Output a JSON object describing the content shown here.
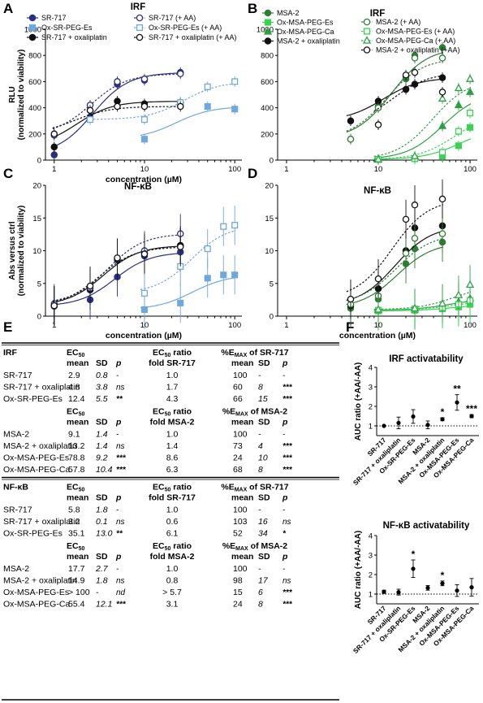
{
  "panel_letters": [
    "A",
    "B",
    "C",
    "D",
    "E",
    "F"
  ],
  "chart_data": [
    {
      "id": "A",
      "type": "scatter",
      "title": "IRF",
      "xlabel": "concentration (µM)",
      "ylabel": "RLU (normalized to viability)",
      "xscale": "log",
      "xlim": [
        0.8,
        120
      ],
      "ylim": [
        0,
        1000
      ],
      "xticks": [
        1,
        10,
        100
      ],
      "yticks": [
        0,
        200,
        400,
        600,
        800,
        1000
      ],
      "legend": [
        "SR-717",
        "Ox-SR-PEG-Es",
        "SR-717 + oxaliplatin",
        "SR-717 (+ AA)",
        "Ox-SR-PEG-Es (+ AA)",
        "SR-717 + oxaliplatin (+ AA)"
      ],
      "series": [
        {
          "name": "SR-717",
          "color": "#2b2f84",
          "marker": "circle",
          "filled": true,
          "dash": false,
          "x": [
            1,
            2.5,
            5,
            10,
            25
          ],
          "y": [
            40,
            330,
            580,
            610,
            670
          ]
        },
        {
          "name": "Ox-SR-PEG-Es",
          "color": "#6fa8dc",
          "marker": "square",
          "filled": true,
          "dash": false,
          "x": [
            10,
            50,
            100
          ],
          "y": [
            160,
            410,
            390
          ]
        },
        {
          "name": "SR-717 + oxaliplatin",
          "color": "#111111",
          "marker": "circle",
          "filled": true,
          "dash": false,
          "x": [
            1,
            2.5,
            5,
            10,
            25
          ],
          "y": [
            100,
            380,
            450,
            430,
            440
          ]
        },
        {
          "name": "SR-717 (+ AA)",
          "color": "#2b2f84",
          "marker": "circle",
          "filled": false,
          "dash": true,
          "x": [
            1,
            2.5,
            5,
            10,
            25
          ],
          "y": [
            190,
            420,
            600,
            620,
            660
          ]
        },
        {
          "name": "Ox-SR-PEG-Es (+ AA)",
          "color": "#6fa8dc",
          "marker": "square",
          "filled": false,
          "dash": true,
          "x": [
            2.5,
            10,
            25,
            50,
            100
          ],
          "y": [
            310,
            310,
            440,
            560,
            600
          ]
        },
        {
          "name": "SR-717 + oxaliplatin (+ AA)",
          "color": "#111111",
          "marker": "circle",
          "filled": false,
          "dash": true,
          "x": [
            1,
            2.5,
            5,
            10,
            25
          ],
          "y": [
            200,
            380,
            410,
            410,
            410
          ]
        }
      ]
    },
    {
      "id": "B",
      "type": "scatter",
      "title": "IRF",
      "xlabel": "",
      "ylabel": "",
      "xscale": "log",
      "xlim": [
        0.8,
        120
      ],
      "ylim": [
        0,
        1000
      ],
      "xticks": [
        1,
        10,
        100
      ],
      "yticks": [
        0,
        200,
        400,
        600,
        800,
        1000
      ],
      "legend": [
        "MSA-2",
        "Ox-MSA-PEG-Es",
        "Ox-MSA-PEG-Ca",
        "MSA-2 + oxaliplatin",
        "MSA-2 (+ AA)",
        "Ox-MSA-PEG-Es (+ AA)",
        "Ox-MSA-PEG-Ca (+ AA)",
        "MSA-2 + oxaliplatin (+AA)"
      ],
      "series": [
        {
          "name": "MSA-2",
          "color": "#2e7d32",
          "marker": "circle",
          "filled": true,
          "dash": false,
          "x": [
            5,
            10,
            20,
            25,
            50
          ],
          "y": [
            160,
            410,
            620,
            800,
            860
          ]
        },
        {
          "name": "Ox-MSA-PEG-Es",
          "color": "#39d353",
          "marker": "square",
          "filled": true,
          "dash": false,
          "x": [
            10,
            25,
            50,
            75,
            100
          ],
          "y": [
            5,
            10,
            30,
            110,
            250
          ]
        },
        {
          "name": "Ox-MSA-PEG-Ca",
          "color": "#2ea043",
          "marker": "triangle",
          "filled": true,
          "dash": false,
          "x": [
            10,
            25,
            50,
            75,
            100
          ],
          "y": [
            5,
            20,
            260,
            420,
            520
          ]
        },
        {
          "name": "MSA-2 + oxaliplatin",
          "color": "#111111",
          "marker": "circle",
          "filled": true,
          "dash": false,
          "x": [
            5,
            10,
            20,
            25,
            50
          ],
          "y": [
            300,
            450,
            540,
            580,
            630
          ]
        },
        {
          "name": "MSA-2 (+ AA)",
          "color": "#2e7d32",
          "marker": "circle",
          "filled": false,
          "dash": true,
          "x": [
            5,
            10,
            20,
            25,
            50
          ],
          "y": [
            160,
            400,
            640,
            780,
            780
          ]
        },
        {
          "name": "Ox-MSA-PEG-Es (+ AA)",
          "color": "#39d353",
          "marker": "square",
          "filled": false,
          "dash": true,
          "x": [
            10,
            25,
            50,
            75,
            100
          ],
          "y": [
            5,
            10,
            60,
            220,
            360
          ]
        },
        {
          "name": "Ox-MSA-PEG-Ca (+ AA)",
          "color": "#2ea043",
          "marker": "triangle",
          "filled": false,
          "dash": true,
          "x": [
            10,
            25,
            50,
            75,
            100
          ],
          "y": [
            5,
            30,
            470,
            550,
            620
          ]
        },
        {
          "name": "MSA-2 + oxaliplatin (+AA)",
          "color": "#111111",
          "marker": "circle",
          "filled": false,
          "dash": true,
          "x": [
            10,
            20,
            25,
            50
          ],
          "y": [
            270,
            650,
            670,
            520
          ]
        }
      ]
    },
    {
      "id": "C",
      "type": "scatter",
      "title": "NF-κB",
      "xlabel": "concentration (µM)",
      "ylabel": "Abs versus ctrl (normalized to viability)",
      "xscale": "log",
      "xlim": [
        0.8,
        120
      ],
      "ylim": [
        0,
        20
      ],
      "xticks": [
        1,
        10,
        100
      ],
      "yticks": [
        0,
        5,
        10,
        15,
        20
      ],
      "series": [
        {
          "name": "SR-717",
          "color": "#2b2f84",
          "marker": "circle",
          "filled": true,
          "dash": false,
          "x": [
            1,
            2.5,
            5,
            10,
            25
          ],
          "y": [
            1.5,
            2.5,
            6.0,
            9.2,
            9.8
          ]
        },
        {
          "name": "Ox-SR-PEG-Es",
          "color": "#6fa8dc",
          "marker": "square",
          "filled": true,
          "dash": false,
          "x": [
            10,
            25,
            50,
            75,
            100
          ],
          "y": [
            1.0,
            2.0,
            5.8,
            6.3,
            6.3
          ]
        },
        {
          "name": "SR-717 + oxaliplatin",
          "color": "#111111",
          "marker": "circle",
          "filled": true,
          "dash": false,
          "x": [
            1,
            2.5,
            5,
            10,
            25
          ],
          "y": [
            1.6,
            4.0,
            8.6,
            9.6,
            10.8
          ]
        },
        {
          "name": "SR-717 (+ AA)",
          "color": "#2b2f84",
          "marker": "circle",
          "filled": false,
          "dash": true,
          "x": [
            1,
            2.5,
            5,
            10,
            25
          ],
          "y": [
            1.9,
            4.3,
            8.8,
            10.0,
            12.6
          ]
        },
        {
          "name": "Ox-SR-PEG-Es (+ AA)",
          "color": "#6fa8dc",
          "marker": "square",
          "filled": false,
          "dash": true,
          "x": [
            10,
            25,
            50,
            75,
            100
          ],
          "y": [
            3.5,
            7.6,
            10.3,
            13.7,
            13.9
          ]
        },
        {
          "name": "SR-717 + oxaliplatin (+ AA)",
          "color": "#111111",
          "marker": "circle",
          "filled": false,
          "dash": true,
          "x": [
            1,
            2.5,
            5,
            10,
            25
          ],
          "y": [
            1.6,
            4.6,
            8.9,
            9.5,
            10.6
          ]
        }
      ]
    },
    {
      "id": "D",
      "type": "scatter",
      "title": "NF-κB",
      "xlabel": "concentration (µM)",
      "ylabel": "",
      "xscale": "log",
      "xlim": [
        0.8,
        120
      ],
      "ylim": [
        0,
        20
      ],
      "xticks": [
        1,
        10,
        100
      ],
      "yticks": [
        0,
        5,
        10,
        15,
        20
      ],
      "series": [
        {
          "name": "MSA-2",
          "color": "#2e7d32",
          "marker": "circle",
          "filled": true,
          "dash": false,
          "x": [
            5,
            10,
            20,
            25,
            50
          ],
          "y": [
            1.2,
            2.6,
            8.0,
            10.3,
            11.3
          ]
        },
        {
          "name": "Ox-MSA-PEG-Es",
          "color": "#39d353",
          "marker": "square",
          "filled": true,
          "dash": false,
          "x": [
            10,
            25,
            50,
            75,
            100
          ],
          "y": [
            0.8,
            0.9,
            1.1,
            1.4,
            1.8
          ]
        },
        {
          "name": "Ox-MSA-PEG-Ca",
          "color": "#2ea043",
          "marker": "triangle",
          "filled": true,
          "dash": false,
          "x": [
            10,
            25,
            50,
            75,
            100
          ],
          "y": [
            0.9,
            1.0,
            1.5,
            2.2,
            2.7
          ]
        },
        {
          "name": "MSA-2 + oxaliplatin",
          "color": "#111111",
          "marker": "circle",
          "filled": true,
          "dash": false,
          "x": [
            5,
            10,
            20,
            25,
            50
          ],
          "y": [
            1.6,
            4.2,
            10.0,
            13.5,
            13.8
          ]
        },
        {
          "name": "MSA-2 (+ AA)",
          "color": "#2e7d32",
          "marker": "circle",
          "filled": false,
          "dash": true,
          "x": [
            5,
            10,
            20,
            25,
            50
          ],
          "y": [
            1.8,
            3.1,
            9.6,
            11.9,
            12.6
          ]
        },
        {
          "name": "Ox-MSA-PEG-Es (+ AA)",
          "color": "#39d353",
          "marker": "square",
          "filled": false,
          "dash": true,
          "x": [
            10,
            25,
            50,
            75,
            100
          ],
          "y": [
            0.9,
            1.1,
            1.3,
            1.8,
            2.4
          ]
        },
        {
          "name": "Ox-MSA-PEG-Ca (+ AA)",
          "color": "#2ea043",
          "marker": "triangle",
          "filled": false,
          "dash": true,
          "x": [
            10,
            25,
            50,
            75,
            100
          ],
          "y": [
            1.0,
            1.2,
            1.9,
            3.2,
            4.8
          ]
        },
        {
          "name": "MSA-2 + oxaliplatin (+AA)",
          "color": "#111111",
          "marker": "circle",
          "filled": false,
          "dash": true,
          "x": [
            5,
            10,
            20,
            25,
            50
          ],
          "y": [
            2.6,
            5.7,
            14.8,
            17.0,
            17.9
          ]
        }
      ]
    },
    {
      "id": "F1",
      "type": "scatter",
      "title": "IRF activatability",
      "xlabel": "",
      "ylabel": "AUC ratio (+AA/-AA)",
      "ylim": [
        0.5,
        4
      ],
      "yticks": [
        1,
        2,
        3,
        4
      ],
      "ytick_labels": [
        "1",
        "2",
        "3",
        "4"
      ],
      "reference_line": 1,
      "categories": [
        "SR-717",
        "SR-717 + oxaliplatin",
        "Ox-SR-PEG-Es",
        "MSA-2",
        "MSA-2 + oxaliplatin",
        "Ox-MSA-PEG-Es",
        "Ox-MSA-PEG-Ca"
      ],
      "values": [
        1.0,
        1.15,
        1.48,
        1.05,
        1.34,
        2.2,
        1.5
      ],
      "errors": [
        0.02,
        0.3,
        0.35,
        0.2,
        0.08,
        0.4,
        0.08
      ],
      "annotations": [
        "",
        "",
        "",
        "",
        "*",
        "**",
        "***"
      ]
    },
    {
      "id": "F2",
      "type": "scatter",
      "title": "NF-κB activatability",
      "xlabel": "",
      "ylabel": "AUC ratio (+AA/-AA)",
      "ylim": [
        0.5,
        4
      ],
      "yticks": [
        1,
        2,
        3,
        4
      ],
      "ytick_labels": [
        "1",
        "2",
        "3",
        "4"
      ],
      "reference_line": 1,
      "categories": [
        "SR-717",
        "SR-717 + oxaliplatin",
        "Ox-SR-PEG-Es",
        "MSA-2",
        "MSA-2 + oxaliplatin",
        "Ox-MSA-PEG-Es",
        "Ox-MSA-PEG-Ca"
      ],
      "values": [
        1.12,
        1.1,
        2.3,
        1.32,
        1.55,
        1.18,
        1.35
      ],
      "errors": [
        0.08,
        0.15,
        0.45,
        0.12,
        0.12,
        0.3,
        0.45
      ],
      "annotations": [
        "",
        "",
        "*",
        "",
        "*",
        "",
        ""
      ]
    }
  ],
  "table_e": {
    "sections": [
      {
        "label": "IRF",
        "blocks": [
          {
            "header1": [
              "EC50",
              "EC50 ratio",
              "%EMAX of SR-717"
            ],
            "header2": [
              "mean",
              "SD",
              "p",
              "fold SR-717",
              "mean",
              "SD",
              "p"
            ],
            "rows": [
              [
                "SR-717",
                "2.9",
                "0.8",
                "-",
                "1.0",
                "100",
                "-",
                "-"
              ],
              [
                "SR-717 + oxaliplatin",
                "4.8",
                "3.8",
                "ns",
                "1.7",
                "60",
                "8",
                "***"
              ],
              [
                "Ox-SR-PEG-Es",
                "12.4",
                "5.5",
                "**",
                "4.3",
                "66",
                "15",
                "***"
              ]
            ]
          },
          {
            "header1": [
              "EC50",
              "EC50 ratio",
              "%EMAX of MSA-2"
            ],
            "header2": [
              "mean",
              "SD",
              "p",
              "fold MSA-2",
              "mean",
              "SD",
              "p"
            ],
            "rows": [
              [
                "MSA-2",
                "9.1",
                "1.4",
                "-",
                "1.0",
                "100",
                "-",
                "-"
              ],
              [
                "MSA-2 + oxaliplatin",
                "13.2",
                "1.4",
                "ns",
                "1.4",
                "73",
                "4",
                "***"
              ],
              [
                "Ox-MSA-PEG-Es",
                "78.8",
                "9.2",
                "***",
                "8.6",
                "24",
                "10",
                "***"
              ],
              [
                "Ox-MSA-PEG-Ca",
                "57.8",
                "10.4",
                "***",
                "6.3",
                "68",
                "8",
                "***"
              ]
            ]
          }
        ]
      },
      {
        "label": "NF-κB",
        "blocks": [
          {
            "header1": [
              "EC50",
              "EC50 ratio",
              "%EMAX of SR-717"
            ],
            "header2": [
              "mean",
              "SD",
              "p",
              "fold SR-717",
              "mean",
              "SD",
              "p"
            ],
            "rows": [
              [
                "SR-717",
                "5.8",
                "1.8",
                "-",
                "1.0",
                "100",
                "-",
                "-"
              ],
              [
                "SR-717 + oxaliplatin",
                "3.2",
                "0.1",
                "ns",
                "0.6",
                "103",
                "16",
                "ns"
              ],
              [
                "Ox-SR-PEG-Es",
                "35.1",
                "13.0",
                "**",
                "6.1",
                "52",
                "34",
                "*"
              ]
            ]
          },
          {
            "header1": [
              "EC50",
              "EC50 ratio",
              "%EMAX of MSA-2"
            ],
            "header2": [
              "mean",
              "SD",
              "p",
              "fold MSA-2",
              "mean",
              "SD",
              "p"
            ],
            "rows": [
              [
                "MSA-2",
                "17.7",
                "2.7",
                "-",
                "1.0",
                "100",
                "-",
                "-"
              ],
              [
                "MSA-2 + oxaliplatin",
                "14.9",
                "1.8",
                "ns",
                "0.8",
                "98",
                "17",
                "ns"
              ],
              [
                "Ox-MSA-PEG-Es",
                "> 100",
                "-",
                "nd",
                "> 5.7",
                "15",
                "6",
                "***"
              ],
              [
                "Ox-MSA-PEG-Ca",
                "55.4",
                "12.1",
                "***",
                "3.1",
                "24",
                "8",
                "***"
              ]
            ]
          }
        ]
      }
    ]
  }
}
